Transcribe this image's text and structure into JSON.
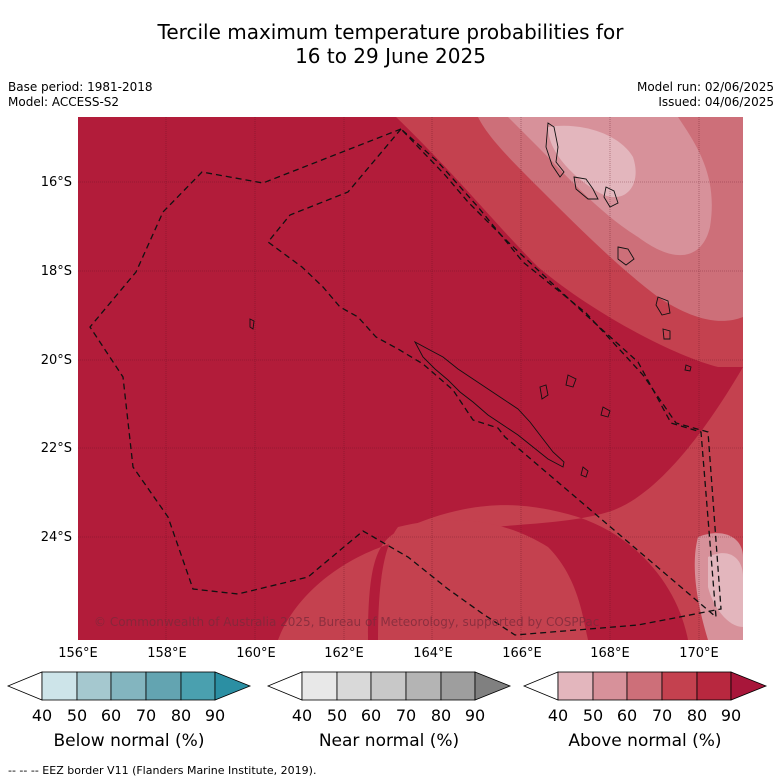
{
  "title_line1": "Tercile maximum temperature probabilities for",
  "title_line2": "16 to 29 June 2025",
  "meta": {
    "base_period": "Base period: 1981-2018",
    "model": "Model: ACCESS-S2",
    "model_run": "Model run: 02/06/2025",
    "issued": "Issued: 04/06/2025"
  },
  "map": {
    "lat_labels": [
      "16°S",
      "18°S",
      "20°S",
      "22°S",
      "24°S"
    ],
    "lon_labels": [
      "156°E",
      "158°E",
      "160°E",
      "162°E",
      "164°E",
      "166°E",
      "168°E",
      "170°E"
    ],
    "copyright": "© Commonwealth of Australia 2025, Bureau of Meteorology, supported by COSPPac",
    "dominant_category": "Above normal",
    "colors": {
      "above_90": "#b21c3a",
      "above_80": "#c4414f",
      "above_70": "#cd6f79",
      "above_60": "#d7919a",
      "above_50": "#e3b6bd"
    }
  },
  "colorbars": [
    {
      "label": "Below normal (%)",
      "ticks": [
        "40",
        "50",
        "60",
        "70",
        "80",
        "90"
      ],
      "colors": [
        "#ffffff",
        "#cde4e9",
        "#a5c8cf",
        "#83b5bf",
        "#63a4b1",
        "#4aa0af",
        "#2b8fa3"
      ]
    },
    {
      "label": "Near normal (%)",
      "ticks": [
        "40",
        "50",
        "60",
        "70",
        "80",
        "90"
      ],
      "colors": [
        "#ffffff",
        "#e8e8e8",
        "#d9d9d9",
        "#c8c8c8",
        "#b4b4b4",
        "#9e9e9e",
        "#808080"
      ]
    },
    {
      "label": "Above normal (%)",
      "ticks": [
        "40",
        "50",
        "60",
        "70",
        "80",
        "90"
      ],
      "colors": [
        "#ffffff",
        "#e3b6bd",
        "#d7919a",
        "#cd6f79",
        "#c4414f",
        "#b8283f",
        "#a8163a"
      ]
    }
  ],
  "footer": "--  --  -- EEZ border V11 (Flanders Marine Institute, 2019)."
}
